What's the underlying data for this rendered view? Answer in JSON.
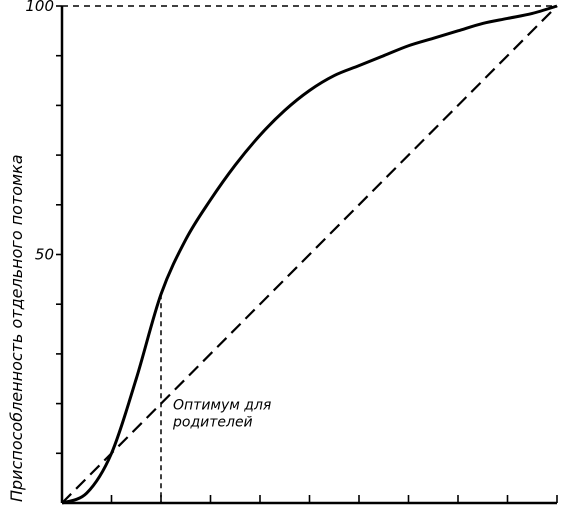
{
  "chart_data": {
    "type": "line",
    "title": "",
    "xlabel": "",
    "ylabel": "Приспособленность отдельного потомка",
    "xlim": [
      0,
      10
    ],
    "ylim": [
      0,
      100
    ],
    "x_ticks": [
      1,
      2,
      3,
      4,
      5,
      6,
      7,
      8,
      9,
      10
    ],
    "y_ticks": [
      {
        "value": 50,
        "label": "50"
      },
      {
        "value": 100,
        "label": "100"
      }
    ],
    "y_minor_ticks": [
      10,
      20,
      30,
      40,
      60,
      70,
      80,
      90
    ],
    "grid": false,
    "legend": "none",
    "series": [
      {
        "style": "solid",
        "x": [
          0,
          0.5,
          1.0,
          1.5,
          2.0,
          2.5,
          3.0,
          3.5,
          4.0,
          4.5,
          5.0,
          5.5,
          6.0,
          6.5,
          7.0,
          7.5,
          8.0,
          8.5,
          9.0,
          9.5,
          10.0
        ],
        "y": [
          0,
          2,
          10,
          25,
          42,
          53,
          61,
          68,
          74,
          79,
          83,
          86,
          88,
          90,
          92,
          93.5,
          95,
          96.5,
          97.5,
          98.5,
          100
        ]
      },
      {
        "style": "dashed",
        "x": [
          0,
          10
        ],
        "y": [
          0,
          100
        ]
      }
    ],
    "annotations": [
      {
        "lines": [
          "Оптимум для",
          "родителей"
        ],
        "x": 2,
        "y": 20,
        "vertical_dashed_to_y": 42
      }
    ],
    "top_dashed_line_y": 100
  }
}
